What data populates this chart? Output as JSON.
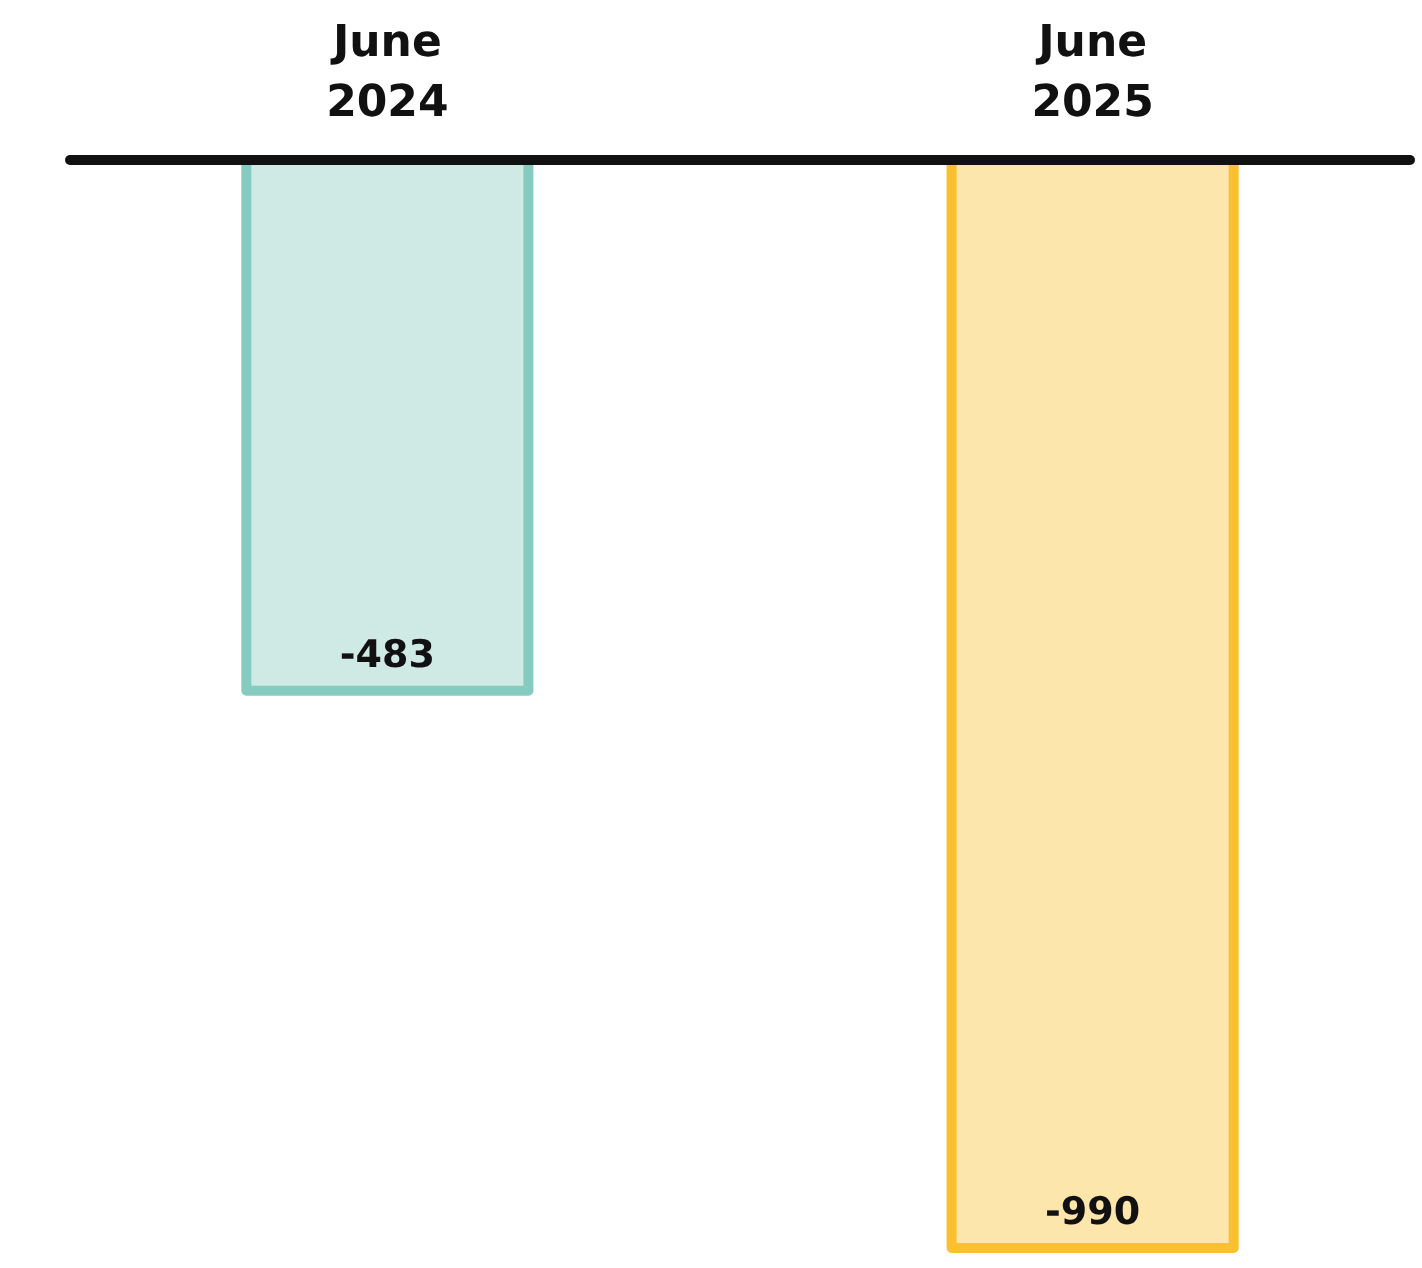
{
  "chart_data": {
    "type": "bar",
    "categories": [
      "June 2024",
      "June 2025"
    ],
    "values": [
      -483,
      -990
    ],
    "colors": [
      "#86cbbf",
      "#fbc02d"
    ],
    "data_labels": true,
    "tick_labels": "x"
  }
}
